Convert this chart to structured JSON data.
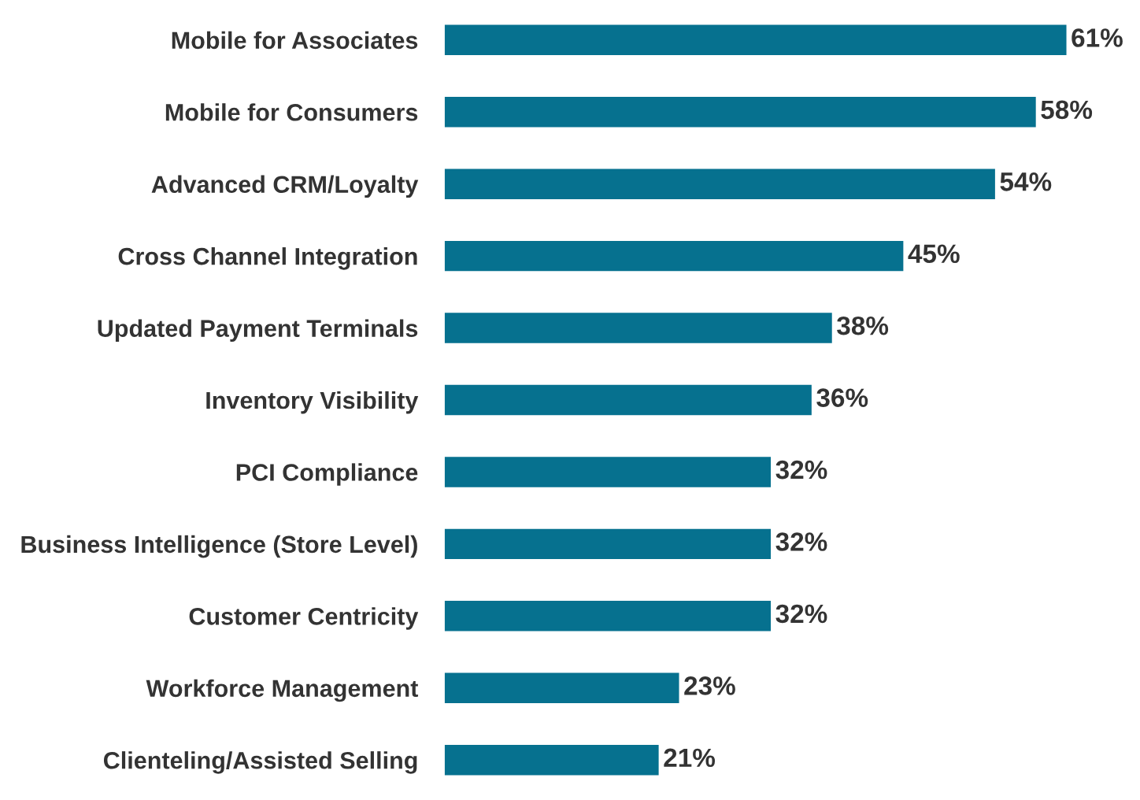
{
  "chart_data": {
    "type": "bar",
    "orientation": "horizontal",
    "categories": [
      "Mobile for Associates",
      "Mobile for Consumers",
      "Advanced CRM/Loyalty",
      "Cross Channel Integration",
      "Updated Payment Terminals",
      "Inventory Visibility",
      "PCI Compliance",
      "Business Intelligence (Store Level)",
      "Customer Centricity",
      "Workforce Management",
      "Clienteling/Assisted Selling"
    ],
    "values": [
      61,
      58,
      54,
      45,
      38,
      36,
      32,
      32,
      32,
      23,
      21
    ],
    "value_labels": [
      "61%",
      "58%",
      "54%",
      "45%",
      "38%",
      "36%",
      "32%",
      "32%",
      "32%",
      "23%",
      "21%"
    ],
    "color": "#06718f",
    "grid": false,
    "legend": false,
    "tick_labels": "y"
  }
}
